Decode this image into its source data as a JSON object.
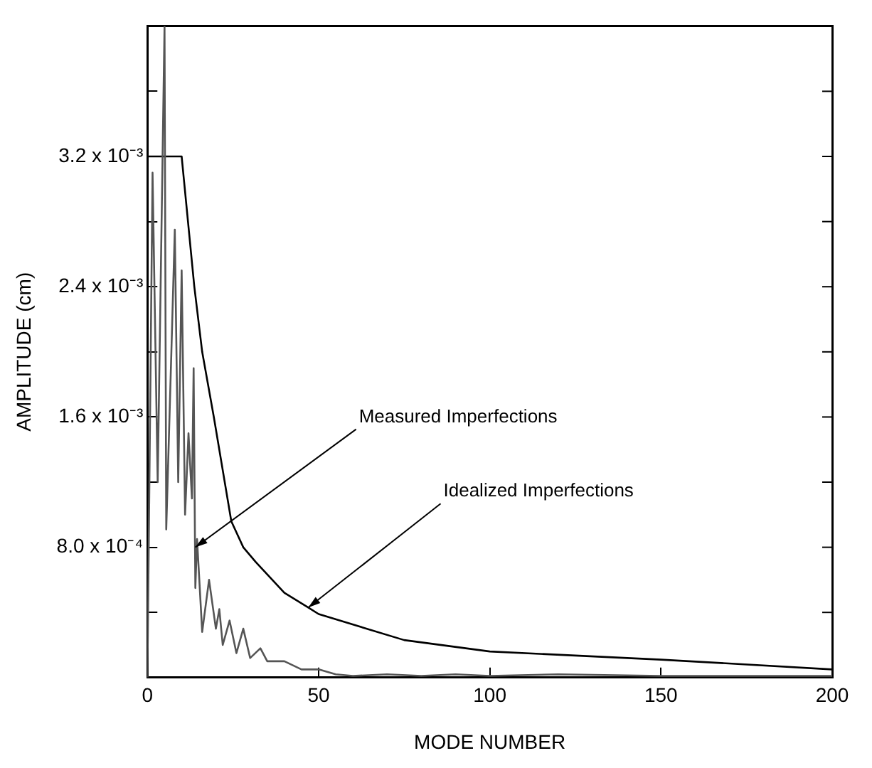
{
  "chart_data": {
    "type": "line",
    "xlabel": "MODE NUMBER",
    "ylabel": "AMPLITUDE (cm)",
    "xlim": [
      0,
      200
    ],
    "xticks": [
      0,
      50,
      100,
      150,
      200
    ],
    "ylim": [
      0,
      0.004
    ],
    "yticks": [
      {
        "value": 0.0004,
        "label": null
      },
      {
        "value": 0.0008,
        "label": "8.0 x 10⁻⁴"
      },
      {
        "value": 0.0012,
        "label": null
      },
      {
        "value": 0.0016,
        "label": "1.6 x 10⁻³"
      },
      {
        "value": 0.002,
        "label": null
      },
      {
        "value": 0.0024,
        "label": "2.4 x 10⁻³"
      },
      {
        "value": 0.0028,
        "label": null
      },
      {
        "value": 0.0032,
        "label": "3.2 x 10⁻³"
      },
      {
        "value": 0.0036,
        "label": null
      }
    ],
    "grid": false,
    "legend": false,
    "marker": "none",
    "line_style": "solid",
    "series": [
      {
        "color": "#555555",
        "x": [
          0,
          1.5,
          3,
          5,
          5.5,
          7,
          8,
          9,
          10,
          11,
          12,
          13,
          13.5,
          14,
          14.5,
          16,
          18,
          20,
          21,
          22,
          24,
          26,
          28,
          30,
          33,
          35,
          40,
          45,
          50,
          55,
          60,
          70,
          80,
          90,
          100,
          120,
          150,
          200
        ],
        "values": [
          0,
          0.0031,
          0.0012,
          0.004,
          0.00091,
          0.002,
          0.00275,
          0.0012,
          0.0025,
          0.001,
          0.0015,
          0.0011,
          0.0019,
          0.00055,
          0.00085,
          0.00028,
          0.0006,
          0.0003,
          0.00042,
          0.0002,
          0.00035,
          0.00015,
          0.0003,
          0.00012,
          0.00018,
          0.0001,
          0.0001,
          5e-05,
          5e-05,
          2e-05,
          1e-05,
          2e-05,
          1e-05,
          2e-05,
          1e-05,
          2e-05,
          1e-05,
          1e-05
        ]
      },
      {
        "color": "#000000",
        "x": [
          0,
          0,
          10,
          13.7,
          16,
          19.4,
          24.5,
          28,
          31.6,
          40,
          47,
          50,
          75,
          100,
          150,
          200
        ],
        "values": [
          0,
          0.0032,
          0.0032,
          0.0024,
          0.002,
          0.0016,
          0.00096,
          0.0008,
          0.00071,
          0.00052,
          0.00043,
          0.00039,
          0.00023,
          0.00016,
          0.00011,
          5e-05
        ]
      }
    ],
    "annotations": [
      {
        "text": "Measured Imperfections",
        "x": 14,
        "y": 0.0008
      },
      {
        "text": "Idealized Imperfections",
        "x": 47,
        "y": 0.00043
      }
    ]
  }
}
